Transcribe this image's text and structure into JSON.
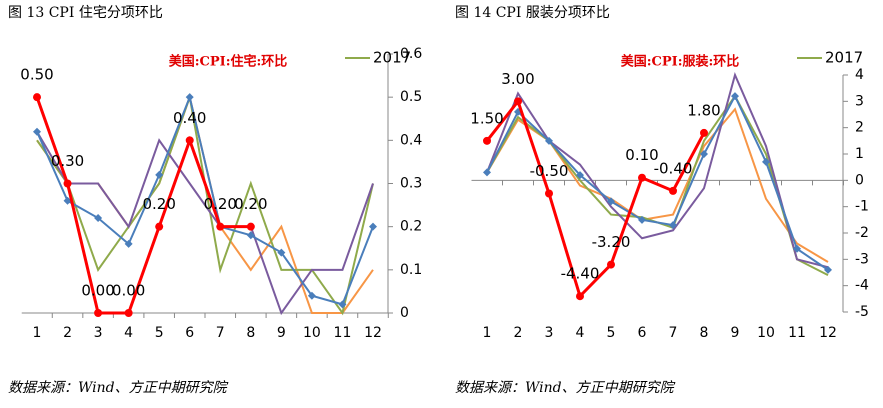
{
  "chart_data": [
    {
      "type": "line",
      "title": "图 13  CPI 住宅分项环比",
      "annotation": "美国:CPI:住宅:环比",
      "source": "数据来源：Wind、方正中期研究院",
      "categories": [
        "1",
        "2",
        "3",
        "4",
        "5",
        "6",
        "7",
        "8",
        "9",
        "10",
        "11",
        "12"
      ],
      "ylim": [
        0,
        0.6
      ],
      "yticks": [
        0,
        0.1,
        0.2,
        0.3,
        0.4,
        0.5,
        0.6
      ],
      "series": [
        {
          "color": "#f79646",
          "values": [
            0.4,
            0.3,
            0.3,
            0.2,
            0.3,
            0.5,
            0.2,
            0.1,
            0.2,
            0,
            0,
            0.1
          ]
        },
        {
          "name": "2017",
          "color": "#8faa4b",
          "values": [
            0.4,
            0.3,
            0.1,
            0.2,
            0.3,
            0.5,
            0.1,
            0.3,
            0.1,
            0.1,
            0,
            0.3
          ]
        },
        {
          "color": "#7a5b9e",
          "values": [
            0.42,
            0.3,
            0.3,
            0.2,
            0.4,
            0.3,
            0.2,
            0.2,
            0,
            0.1,
            0.1,
            0.3
          ]
        },
        {
          "color": "#4a7ebb",
          "marker": "diamond",
          "values": [
            0.42,
            0.26,
            0.22,
            0.16,
            0.32,
            0.5,
            0.2,
            0.18,
            0.14,
            0.04,
            0.02,
            0.2
          ]
        },
        {
          "color": "#ff0000",
          "marker": "circle",
          "values": [
            0.5,
            0.3,
            0,
            0,
            0.2,
            0.4,
            0.2,
            0.2,
            null,
            null,
            null,
            null
          ],
          "value_labels": [
            "0.50",
            "0.30",
            "0.00",
            "0.00",
            "0.20",
            "0.40",
            "0.20",
            "0.20",
            null,
            null,
            null,
            null
          ]
        }
      ]
    },
    {
      "type": "line",
      "title": "图 14  CPI 服装分项环比",
      "annotation": "美国:CPI:服装:环比",
      "source": "数据来源：Wind、方正中期研究院",
      "categories": [
        "1",
        "2",
        "3",
        "4",
        "5",
        "6",
        "7",
        "8",
        "9",
        "10",
        "11",
        "12"
      ],
      "ylim": [
        -5,
        4
      ],
      "yticks": [
        -5,
        -4,
        -3,
        -2,
        -1,
        0,
        1,
        2,
        3,
        4
      ],
      "series": [
        {
          "color": "#f79646",
          "values": [
            0.3,
            2.3,
            1.5,
            -0.2,
            -0.7,
            -1.5,
            -1.3,
            1.3,
            2.7,
            -0.7,
            -2.4,
            -3.1
          ]
        },
        {
          "name": "2017",
          "color": "#8faa4b",
          "values": [
            0.3,
            2.4,
            1.5,
            0,
            -1.3,
            -1.4,
            -1.8,
            1.5,
            3.2,
            1.0,
            -3.0,
            -3.6
          ]
        },
        {
          "color": "#7a5b9e",
          "values": [
            0.3,
            3.3,
            1.5,
            0.6,
            -1.0,
            -2.2,
            -1.9,
            -0.3,
            4.0,
            1.3,
            -3.0,
            -3.3
          ]
        },
        {
          "color": "#4a7ebb",
          "marker": "diamond",
          "values": [
            0.3,
            2.6,
            1.5,
            0.2,
            -0.8,
            -1.5,
            -1.7,
            1.0,
            3.2,
            0.7,
            -2.6,
            -3.4
          ]
        },
        {
          "color": "#ff0000",
          "marker": "circle",
          "values": [
            1.5,
            3.0,
            -0.5,
            -4.4,
            -3.2,
            0.1,
            -0.4,
            1.8,
            null,
            null,
            null,
            null
          ],
          "value_labels": [
            "1.50",
            "3.00",
            "-0.50",
            "-4.40",
            "-3.20",
            "0.10",
            "-0.40",
            "1.80",
            null,
            null,
            null,
            null
          ]
        }
      ]
    }
  ]
}
